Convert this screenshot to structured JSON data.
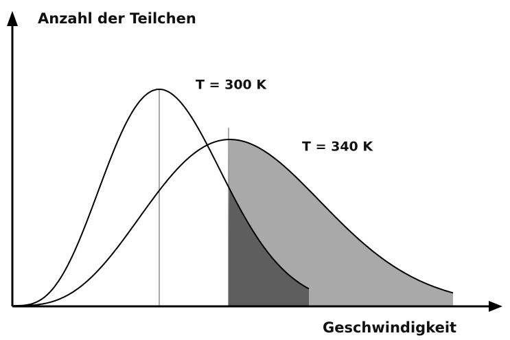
{
  "y_axis_label": "Anzahl der Teilchen",
  "x_axis_label": "Geschwindigkeit",
  "curves": [
    {
      "label": "T = 300 K"
    },
    {
      "label": "T = 340 K"
    }
  ]
}
